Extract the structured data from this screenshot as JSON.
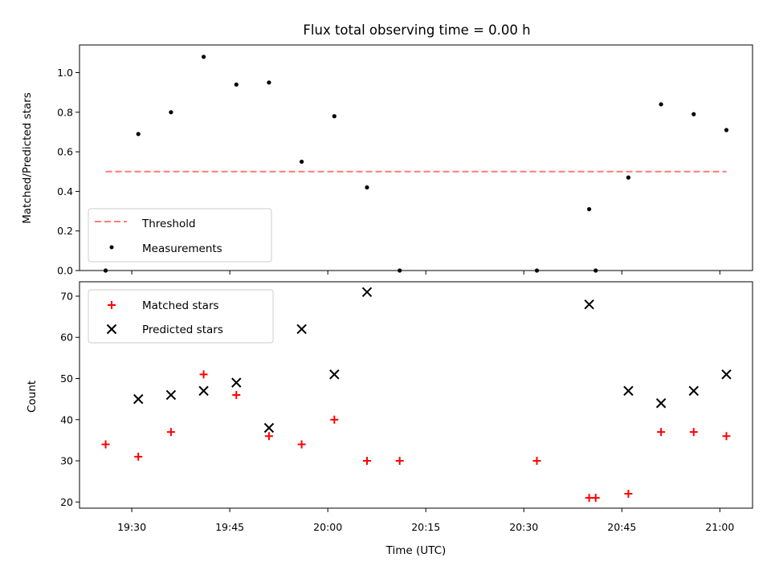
{
  "chart_data": [
    {
      "type": "scatter",
      "title": "Flux total observing time = 0.00 h",
      "ylabel": "Matched/Predicted stars",
      "xlabel": "",
      "ylim": [
        0.0,
        1.14
      ],
      "yticks": [
        "0.0",
        "0.2",
        "0.4",
        "0.6",
        "0.8",
        "1.0"
      ],
      "legend_position": "lower-left",
      "threshold": {
        "name": "Threshold",
        "value": 0.5,
        "x_range": [
          "19:26",
          "21:01"
        ],
        "color": "#ff7a7a",
        "style": "dashed"
      },
      "series": [
        {
          "name": "Measurements",
          "color": "#000000",
          "marker": "dot",
          "points": [
            {
              "x": "19:26",
              "y": 0.0
            },
            {
              "x": "19:31",
              "y": 0.69
            },
            {
              "x": "19:36",
              "y": 0.8
            },
            {
              "x": "19:41",
              "y": 1.08
            },
            {
              "x": "19:46",
              "y": 0.94
            },
            {
              "x": "19:51",
              "y": 0.95
            },
            {
              "x": "19:56",
              "y": 0.55
            },
            {
              "x": "20:01",
              "y": 0.78
            },
            {
              "x": "20:06",
              "y": 0.42
            },
            {
              "x": "20:11",
              "y": 0.0
            },
            {
              "x": "20:32",
              "y": 0.0
            },
            {
              "x": "20:40",
              "y": 0.31
            },
            {
              "x": "20:41",
              "y": 0.0
            },
            {
              "x": "20:46",
              "y": 0.47
            },
            {
              "x": "20:51",
              "y": 0.84
            },
            {
              "x": "20:56",
              "y": 0.79
            },
            {
              "x": "21:01",
              "y": 0.71
            }
          ]
        }
      ]
    },
    {
      "type": "scatter",
      "title": "",
      "ylabel": "Count",
      "xlabel": "Time (UTC)",
      "xlim": [
        "19:22",
        "21:05"
      ],
      "xticks": [
        "19:30",
        "19:45",
        "20:00",
        "20:15",
        "20:30",
        "20:45",
        "21:00"
      ],
      "ylim": [
        18.5,
        73.5
      ],
      "yticks": [
        "20",
        "30",
        "40",
        "50",
        "60",
        "70"
      ],
      "legend_position": "upper-left",
      "series": [
        {
          "name": "Matched stars",
          "color": "#ff0000",
          "marker": "plus",
          "points": [
            {
              "x": "19:26",
              "y": 34
            },
            {
              "x": "19:31",
              "y": 31
            },
            {
              "x": "19:36",
              "y": 37
            },
            {
              "x": "19:41",
              "y": 51
            },
            {
              "x": "19:46",
              "y": 46
            },
            {
              "x": "19:51",
              "y": 36
            },
            {
              "x": "19:56",
              "y": 34
            },
            {
              "x": "20:01",
              "y": 40
            },
            {
              "x": "20:06",
              "y": 30
            },
            {
              "x": "20:11",
              "y": 30
            },
            {
              "x": "20:32",
              "y": 30
            },
            {
              "x": "20:40",
              "y": 21
            },
            {
              "x": "20:41",
              "y": 21
            },
            {
              "x": "20:46",
              "y": 22
            },
            {
              "x": "20:51",
              "y": 37
            },
            {
              "x": "20:56",
              "y": 37
            },
            {
              "x": "21:01",
              "y": 36
            }
          ]
        },
        {
          "name": "Predicted stars",
          "color": "#000000",
          "marker": "x",
          "points": [
            {
              "x": "19:31",
              "y": 45
            },
            {
              "x": "19:36",
              "y": 46
            },
            {
              "x": "19:41",
              "y": 47
            },
            {
              "x": "19:46",
              "y": 49
            },
            {
              "x": "19:51",
              "y": 38
            },
            {
              "x": "19:56",
              "y": 62
            },
            {
              "x": "20:01",
              "y": 51
            },
            {
              "x": "20:06",
              "y": 71
            },
            {
              "x": "20:40",
              "y": 68
            },
            {
              "x": "20:46",
              "y": 47
            },
            {
              "x": "20:51",
              "y": 44
            },
            {
              "x": "20:56",
              "y": 47
            },
            {
              "x": "21:01",
              "y": 51
            }
          ]
        }
      ]
    }
  ]
}
